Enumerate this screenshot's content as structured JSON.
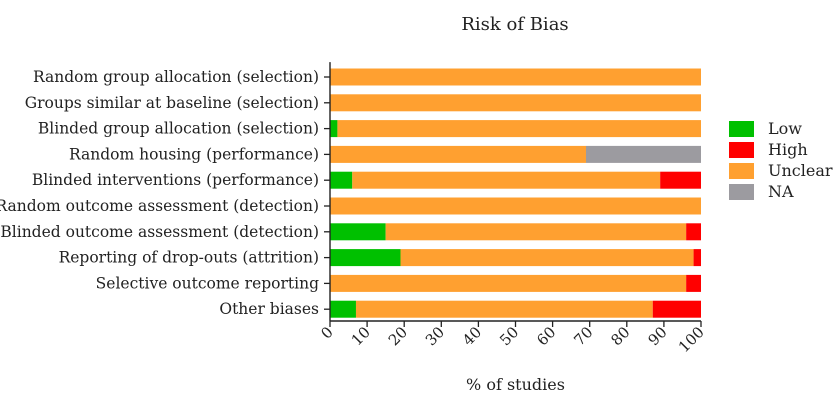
{
  "chart_data": {
    "type": "bar",
    "orientation": "horizontal",
    "stacked": true,
    "title": "Risk of Bias",
    "xlabel": "% of studies",
    "ylabel": "",
    "xlim": [
      0,
      100
    ],
    "xticks": [
      "0",
      "10",
      "20",
      "30",
      "40",
      "50",
      "60",
      "70",
      "80",
      "90",
      "100"
    ],
    "grid": false,
    "legend_position": "right",
    "categories": [
      "Random group allocation (selection)",
      "Groups similar at baseline (selection)",
      "Blinded group allocation (selection)",
      "Random housing (performance)",
      "Blinded interventions (performance)",
      "Random outcome assessment (detection)",
      "Blinded outcome assessment (detection)",
      "Reporting of drop-outs (attrition)",
      "Selective outcome reporting",
      "Other biases"
    ],
    "series": [
      {
        "name": "Low",
        "color": "#00c000",
        "values": [
          0,
          0,
          2,
          0,
          6,
          0,
          15,
          19,
          0,
          7
        ]
      },
      {
        "name": "High",
        "color": "#ff0000",
        "values": [
          0,
          0,
          0,
          0,
          11,
          0,
          4,
          2,
          4,
          13
        ]
      },
      {
        "name": "Unclear",
        "color": "#ffa030",
        "values": [
          100,
          100,
          98,
          69,
          83,
          100,
          81,
          79,
          96,
          80
        ]
      },
      {
        "name": "NA",
        "color": "#9c9ba0",
        "values": [
          0,
          0,
          0,
          31,
          0,
          0,
          0,
          0,
          0,
          0
        ]
      }
    ]
  }
}
